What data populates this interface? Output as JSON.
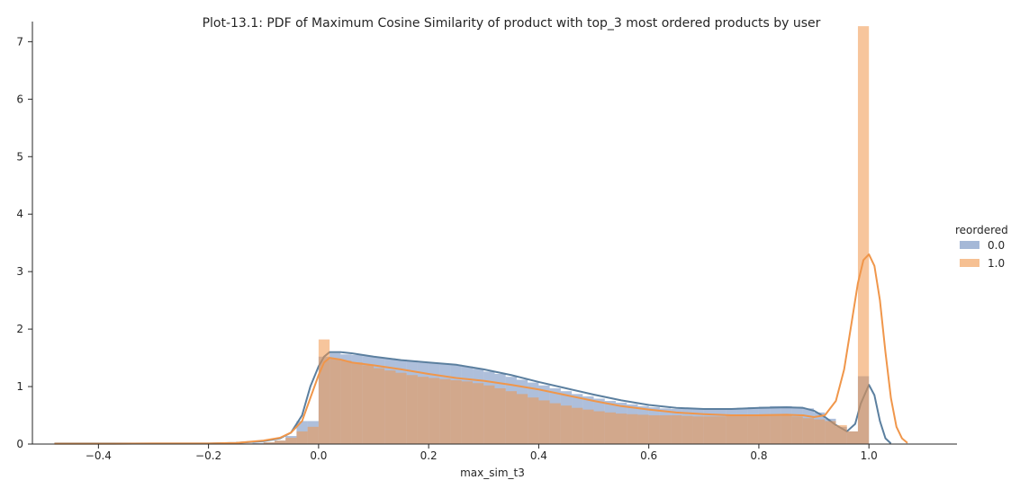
{
  "chart_data": {
    "type": "histogram+kde",
    "title": "Plot-13.1: PDF of Maximum Cosine Similarity of product with top_3 most ordered products by user",
    "xlabel": "max_sim_t3",
    "ylabel": "",
    "xlim": [
      -0.52,
      1.16
    ],
    "ylim": [
      0,
      7.35
    ],
    "x_ticks": [
      -0.4,
      -0.2,
      0.0,
      0.2,
      0.4,
      0.6,
      0.8,
      1.0
    ],
    "x_tick_labels": [
      "−0.4",
      "−0.2",
      "0.0",
      "0.2",
      "0.4",
      "0.6",
      "0.8",
      "1.0"
    ],
    "y_ticks": [
      0,
      1,
      2,
      3,
      4,
      5,
      6,
      7
    ],
    "y_tick_labels": [
      "0",
      "1",
      "2",
      "3",
      "4",
      "5",
      "6",
      "7"
    ],
    "grid": false,
    "legend": {
      "title": "reordered",
      "placement": "right",
      "entries": [
        "0.0",
        "1.0"
      ]
    },
    "bin_width": 0.02,
    "series": [
      {
        "name": "0.0",
        "color": "#4c72b0",
        "line_color": "#5b7f9f",
        "fill_opacity": 0.45,
        "hist": {
          "x0": [
            -0.48,
            -0.46,
            -0.44,
            -0.42,
            -0.4,
            -0.38,
            -0.36,
            -0.34,
            -0.32,
            -0.3,
            -0.28,
            -0.26,
            -0.24,
            -0.22,
            -0.2,
            -0.18,
            -0.16,
            -0.14,
            -0.12,
            -0.1,
            -0.08,
            -0.06,
            -0.04,
            -0.02,
            0.0,
            0.02,
            0.04,
            0.06,
            0.08,
            0.1,
            0.12,
            0.14,
            0.16,
            0.18,
            0.2,
            0.22,
            0.24,
            0.26,
            0.28,
            0.3,
            0.32,
            0.34,
            0.36,
            0.38,
            0.4,
            0.42,
            0.44,
            0.46,
            0.48,
            0.5,
            0.52,
            0.54,
            0.56,
            0.58,
            0.6,
            0.62,
            0.64,
            0.66,
            0.68,
            0.7,
            0.72,
            0.74,
            0.76,
            0.78,
            0.8,
            0.82,
            0.84,
            0.86,
            0.88,
            0.9,
            0.92,
            0.94,
            0.96,
            0.98
          ],
          "heights": [
            0.005,
            0.005,
            0.005,
            0.005,
            0.005,
            0.005,
            0.005,
            0.005,
            0.005,
            0.005,
            0.005,
            0.005,
            0.005,
            0.005,
            0.005,
            0.01,
            0.01,
            0.01,
            0.02,
            0.03,
            0.06,
            0.14,
            0.4,
            0.4,
            1.52,
            1.58,
            1.56,
            1.55,
            1.53,
            1.51,
            1.49,
            1.47,
            1.45,
            1.42,
            1.41,
            1.4,
            1.38,
            1.35,
            1.31,
            1.26,
            1.22,
            1.17,
            1.12,
            1.07,
            1.02,
            0.97,
            0.92,
            0.87,
            0.83,
            0.79,
            0.75,
            0.72,
            0.69,
            0.66,
            0.64,
            0.62,
            0.61,
            0.61,
            0.61,
            0.61,
            0.61,
            0.62,
            0.63,
            0.64,
            0.65,
            0.66,
            0.66,
            0.65,
            0.62,
            0.55,
            0.44,
            0.3,
            0.22,
            1.18
          ]
        },
        "kde": {
          "x": [
            -0.48,
            -0.4,
            -0.3,
            -0.2,
            -0.15,
            -0.1,
            -0.07,
            -0.05,
            -0.03,
            -0.015,
            0.0,
            0.01,
            0.02,
            0.04,
            0.06,
            0.1,
            0.15,
            0.2,
            0.25,
            0.3,
            0.35,
            0.4,
            0.45,
            0.5,
            0.55,
            0.6,
            0.65,
            0.7,
            0.75,
            0.8,
            0.85,
            0.88,
            0.9,
            0.92,
            0.94,
            0.96,
            0.975,
            0.985,
            1.0,
            1.01,
            1.02,
            1.03,
            1.04
          ],
          "y": [
            0.01,
            0.01,
            0.01,
            0.01,
            0.02,
            0.05,
            0.1,
            0.2,
            0.5,
            1.0,
            1.35,
            1.52,
            1.6,
            1.6,
            1.58,
            1.52,
            1.46,
            1.42,
            1.38,
            1.3,
            1.2,
            1.08,
            0.97,
            0.86,
            0.76,
            0.68,
            0.63,
            0.61,
            0.61,
            0.63,
            0.64,
            0.63,
            0.58,
            0.47,
            0.33,
            0.22,
            0.35,
            0.7,
            1.03,
            0.85,
            0.4,
            0.1,
            0.01
          ]
        }
      },
      {
        "name": "1.0",
        "color": "#f0964a",
        "line_color": "#f0964a",
        "fill_opacity": 0.55,
        "hist": {
          "x0": [
            -0.48,
            -0.46,
            -0.44,
            -0.42,
            -0.4,
            -0.38,
            -0.36,
            -0.34,
            -0.32,
            -0.3,
            -0.28,
            -0.26,
            -0.24,
            -0.22,
            -0.2,
            -0.18,
            -0.16,
            -0.14,
            -0.12,
            -0.1,
            -0.08,
            -0.06,
            -0.04,
            -0.02,
            0.0,
            0.02,
            0.04,
            0.06,
            0.08,
            0.1,
            0.12,
            0.14,
            0.16,
            0.18,
            0.2,
            0.22,
            0.24,
            0.26,
            0.28,
            0.3,
            0.32,
            0.34,
            0.36,
            0.38,
            0.4,
            0.42,
            0.44,
            0.46,
            0.48,
            0.5,
            0.52,
            0.54,
            0.56,
            0.58,
            0.6,
            0.62,
            0.64,
            0.66,
            0.68,
            0.7,
            0.72,
            0.74,
            0.76,
            0.78,
            0.8,
            0.82,
            0.84,
            0.86,
            0.88,
            0.9,
            0.92,
            0.94,
            0.96,
            0.98
          ],
          "heights": [
            0.005,
            0.005,
            0.005,
            0.005,
            0.005,
            0.005,
            0.005,
            0.005,
            0.005,
            0.005,
            0.005,
            0.005,
            0.005,
            0.005,
            0.005,
            0.005,
            0.005,
            0.01,
            0.01,
            0.03,
            0.06,
            0.11,
            0.22,
            0.3,
            1.82,
            1.48,
            1.45,
            1.42,
            1.37,
            1.32,
            1.28,
            1.24,
            1.2,
            1.17,
            1.15,
            1.13,
            1.11,
            1.09,
            1.06,
            1.02,
            0.97,
            0.92,
            0.87,
            0.81,
            0.76,
            0.71,
            0.67,
            0.63,
            0.6,
            0.57,
            0.55,
            0.53,
            0.52,
            0.51,
            0.5,
            0.5,
            0.5,
            0.49,
            0.48,
            0.48,
            0.48,
            0.49,
            0.5,
            0.51,
            0.52,
            0.52,
            0.51,
            0.48,
            0.45,
            0.43,
            0.4,
            0.33,
            0.22,
            7.27
          ]
        },
        "kde": {
          "x": [
            -0.48,
            -0.4,
            -0.3,
            -0.2,
            -0.15,
            -0.1,
            -0.07,
            -0.05,
            -0.03,
            -0.015,
            0.0,
            0.01,
            0.02,
            0.04,
            0.06,
            0.1,
            0.15,
            0.2,
            0.25,
            0.3,
            0.35,
            0.4,
            0.45,
            0.5,
            0.55,
            0.6,
            0.65,
            0.7,
            0.75,
            0.8,
            0.85,
            0.88,
            0.9,
            0.92,
            0.94,
            0.955,
            0.97,
            0.98,
            0.99,
            1.0,
            1.01,
            1.02,
            1.03,
            1.04,
            1.05,
            1.06,
            1.07
          ],
          "y": [
            0.005,
            0.005,
            0.01,
            0.01,
            0.02,
            0.06,
            0.11,
            0.2,
            0.4,
            0.8,
            1.2,
            1.42,
            1.5,
            1.47,
            1.42,
            1.37,
            1.3,
            1.22,
            1.15,
            1.1,
            1.03,
            0.95,
            0.85,
            0.75,
            0.66,
            0.6,
            0.55,
            0.52,
            0.5,
            0.5,
            0.51,
            0.5,
            0.47,
            0.5,
            0.75,
            1.3,
            2.2,
            2.8,
            3.2,
            3.3,
            3.1,
            2.5,
            1.6,
            0.8,
            0.3,
            0.1,
            0.02
          ]
        }
      }
    ]
  }
}
